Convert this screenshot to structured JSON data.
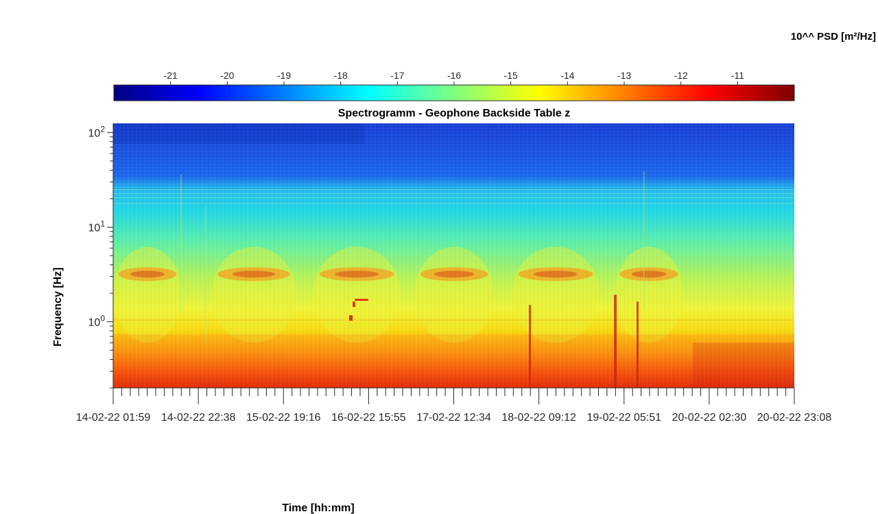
{
  "chart_data": {
    "type": "heatmap",
    "title": "Spectrogramm - Geophone Backside Table z",
    "xlabel": "Time [hh:mm]",
    "ylabel": "Frequency [Hz]",
    "y_scale": "log",
    "ylim": [
      0.2,
      125
    ],
    "y_ticks": [
      {
        "base": "10",
        "exp": "-1",
        "value": 0.1,
        "shown": false
      },
      {
        "base": "10",
        "exp": "0",
        "value": 1
      },
      {
        "base": "10",
        "exp": "1",
        "value": 10
      },
      {
        "base": "10",
        "exp": "2",
        "value": 100
      }
    ],
    "x_tick_labels": [
      "14-02-22  01:59",
      "14-02-22  22:38",
      "15-02-22  19:16",
      "16-02-22  15:55",
      "17-02-22  12:34",
      "18-02-22  09:12",
      "19-02-22  05:51",
      "20-02-22  02:30",
      "20-02-22  23:08"
    ],
    "colorbar": {
      "label": "10^^ PSD [m²/Hz]",
      "range": [
        -22,
        -10
      ],
      "ticks": [
        "-21",
        "-20",
        "-19",
        "-18",
        "-17",
        "-16",
        "-15",
        "-14",
        "-13",
        "-12",
        "-11"
      ],
      "colormap": "jet"
    },
    "colors": {
      "low": "#00007f",
      "mid": "#7fff7f",
      "high": "#7f0000"
    }
  }
}
